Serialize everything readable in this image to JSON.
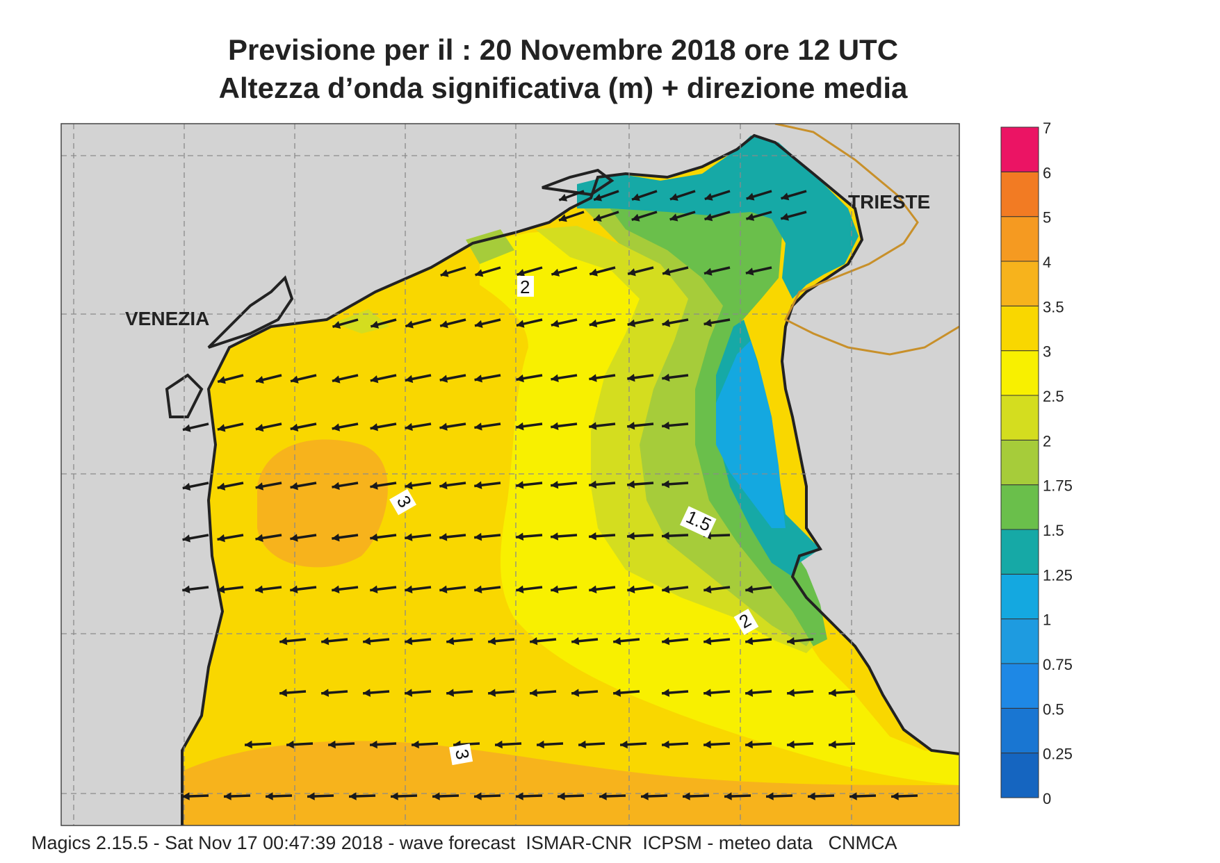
{
  "title": {
    "line1": "Previsione per il  :  20 Novembre  2018   ore 12 UTC",
    "line2": "Altezza d’onda significativa (m) + direzione media"
  },
  "labels": {
    "city_west": "VENEZIA",
    "city_east": "TRIESTE",
    "contour_labels": [
      "2",
      "3",
      "1.5",
      "2",
      "3"
    ]
  },
  "legend": {
    "values": [
      "0",
      "0.25",
      "0.5",
      "0.75",
      "1",
      "1.25",
      "1.5",
      "1.75",
      "2",
      "2.5",
      "3",
      "3.5",
      "4",
      "5",
      "6",
      "7"
    ],
    "colors": [
      "#1565c0",
      "#1976d2",
      "#1e88e5",
      "#1e9be0",
      "#14a8e0",
      "#16a9a6",
      "#6abf4b",
      "#a6cc3a",
      "#d4dd1f",
      "#f8f000",
      "#f9d700",
      "#f7b31c",
      "#f59a21",
      "#f27b23",
      "#ec2128",
      "#eb1464"
    ]
  },
  "footer": "Magics 2.15.5 - Sat Nov 17 00:47:39 2018 - wave forecast  ISMAR-CNR  ICPSM - meteo data   CNMCA",
  "colors": {
    "land": "#d3d3d3",
    "coast": "#222222",
    "border": "#c8902a",
    "arrow": "#1a1a1a"
  }
}
